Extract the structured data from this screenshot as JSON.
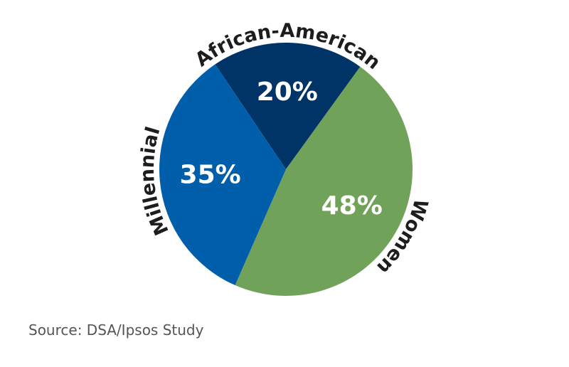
{
  "chart_data": {
    "type": "pie",
    "categories": [
      "African-American",
      "Women",
      "Millennial"
    ],
    "values": [
      20,
      48,
      35
    ],
    "value_labels": [
      "20%",
      "48%",
      "35%"
    ],
    "colors": [
      "#003466",
      "#70a25a",
      "#005eab"
    ],
    "source": "Source: DSA/Ipsos Study"
  }
}
